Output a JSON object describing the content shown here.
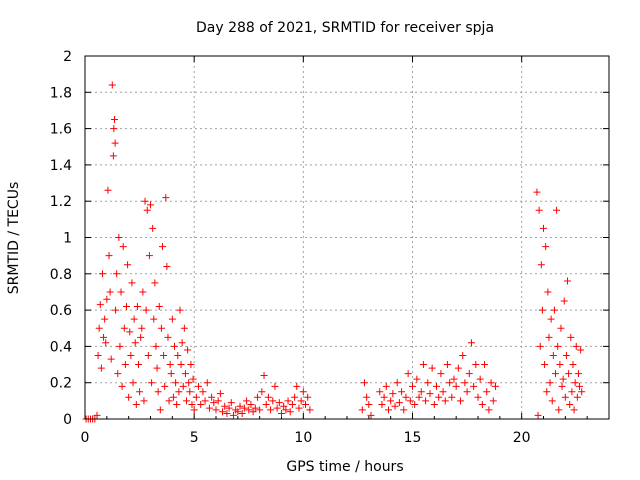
{
  "chart_data": {
    "type": "scatter",
    "title": "Day 288 of 2021, SRMTID for receiver spja",
    "xlabel": "GPS time / hours",
    "ylabel": "SRMTID / TECUs",
    "xlim": [
      0,
      24
    ],
    "ylim": [
      0,
      2
    ],
    "x_ticks": [
      0,
      5,
      10,
      15,
      20
    ],
    "x_tick_labels": [
      "0",
      "5",
      "10",
      "15",
      "20"
    ],
    "y_ticks": [
      0,
      0.2,
      0.4,
      0.6,
      0.8,
      1,
      1.2,
      1.4,
      1.6,
      1.8,
      2
    ],
    "y_tick_labels": [
      "0",
      "0.2",
      "0.4",
      "0.6",
      "0.8",
      "1",
      "1.2",
      "1.4",
      "1.6",
      "1.8",
      "2"
    ],
    "grid": true,
    "marker": "+",
    "color": "#ff0000",
    "series": [
      {
        "name": "SRMTID",
        "points": [
          [
            0.05,
            0.0
          ],
          [
            0.15,
            0.0
          ],
          [
            0.25,
            0.0
          ],
          [
            0.35,
            0.0
          ],
          [
            0.45,
            0.0
          ],
          [
            0.55,
            0.02
          ],
          [
            0.6,
            0.35
          ],
          [
            0.65,
            0.5
          ],
          [
            0.7,
            0.63
          ],
          [
            0.75,
            0.28
          ],
          [
            0.8,
            0.8
          ],
          [
            0.85,
            0.45
          ],
          [
            0.9,
            0.55
          ],
          [
            0.95,
            0.42
          ],
          [
            1.0,
            0.66
          ],
          [
            1.05,
            1.26
          ],
          [
            1.1,
            0.9
          ],
          [
            1.15,
            0.7
          ],
          [
            1.2,
            0.33
          ],
          [
            1.25,
            1.84
          ],
          [
            1.3,
            1.45
          ],
          [
            1.32,
            1.6
          ],
          [
            1.35,
            1.65
          ],
          [
            1.38,
            1.52
          ],
          [
            1.4,
            0.6
          ],
          [
            1.45,
            0.8
          ],
          [
            1.5,
            0.25
          ],
          [
            1.55,
            1.0
          ],
          [
            1.6,
            0.4
          ],
          [
            1.65,
            0.7
          ],
          [
            1.7,
            0.18
          ],
          [
            1.75,
            0.95
          ],
          [
            1.8,
            0.5
          ],
          [
            1.85,
            0.3
          ],
          [
            1.9,
            0.62
          ],
          [
            1.95,
            0.85
          ],
          [
            2.0,
            0.12
          ],
          [
            2.05,
            0.48
          ],
          [
            2.1,
            0.35
          ],
          [
            2.15,
            0.75
          ],
          [
            2.2,
            0.2
          ],
          [
            2.25,
            0.55
          ],
          [
            2.3,
            0.42
          ],
          [
            2.35,
            0.08
          ],
          [
            2.4,
            0.62
          ],
          [
            2.45,
            0.3
          ],
          [
            2.5,
            0.15
          ],
          [
            2.55,
            0.45
          ],
          [
            2.6,
            0.5
          ],
          [
            2.65,
            0.7
          ],
          [
            2.7,
            0.1
          ],
          [
            2.75,
            1.2
          ],
          [
            2.8,
            0.6
          ],
          [
            2.85,
            1.15
          ],
          [
            2.9,
            0.35
          ],
          [
            2.95,
            0.9
          ],
          [
            3.0,
            1.18
          ],
          [
            3.05,
            0.2
          ],
          [
            3.1,
            1.05
          ],
          [
            3.15,
            0.55
          ],
          [
            3.2,
            0.75
          ],
          [
            3.25,
            0.4
          ],
          [
            3.3,
            0.28
          ],
          [
            3.35,
            0.15
          ],
          [
            3.4,
            0.62
          ],
          [
            3.45,
            0.05
          ],
          [
            3.5,
            0.5
          ],
          [
            3.55,
            0.95
          ],
          [
            3.6,
            0.35
          ],
          [
            3.65,
            0.18
          ],
          [
            3.7,
            1.22
          ],
          [
            3.75,
            0.84
          ],
          [
            3.8,
            0.45
          ],
          [
            3.85,
            0.1
          ],
          [
            3.9,
            0.3
          ],
          [
            3.95,
            0.25
          ],
          [
            4.0,
            0.55
          ],
          [
            4.05,
            0.12
          ],
          [
            4.1,
            0.4
          ],
          [
            4.15,
            0.2
          ],
          [
            4.2,
            0.08
          ],
          [
            4.25,
            0.35
          ],
          [
            4.3,
            0.15
          ],
          [
            4.35,
            0.6
          ],
          [
            4.4,
            0.3
          ],
          [
            4.45,
            0.42
          ],
          [
            4.5,
            0.18
          ],
          [
            4.55,
            0.5
          ],
          [
            4.6,
            0.25
          ],
          [
            4.65,
            0.1
          ],
          [
            4.7,
            0.38
          ],
          [
            4.75,
            0.2
          ],
          [
            4.8,
            0.15
          ],
          [
            4.85,
            0.3
          ],
          [
            4.9,
            0.08
          ],
          [
            4.95,
            0.22
          ],
          [
            5.0,
            0.05
          ],
          [
            5.1,
            0.12
          ],
          [
            5.2,
            0.18
          ],
          [
            5.3,
            0.08
          ],
          [
            5.4,
            0.15
          ],
          [
            5.5,
            0.1
          ],
          [
            5.6,
            0.2
          ],
          [
            5.7,
            0.06
          ],
          [
            5.8,
            0.12
          ],
          [
            5.9,
            0.09
          ],
          [
            6.0,
            0.05
          ],
          [
            6.1,
            0.1
          ],
          [
            6.2,
            0.14
          ],
          [
            6.3,
            0.04
          ],
          [
            6.4,
            0.07
          ],
          [
            6.5,
            0.03
          ],
          [
            6.6,
            0.06
          ],
          [
            6.7,
            0.09
          ],
          [
            6.8,
            0.02
          ],
          [
            6.9,
            0.05
          ],
          [
            7.0,
            0.04
          ],
          [
            7.1,
            0.07
          ],
          [
            7.2,
            0.03
          ],
          [
            7.3,
            0.06
          ],
          [
            7.4,
            0.1
          ],
          [
            7.5,
            0.05
          ],
          [
            7.6,
            0.08
          ],
          [
            7.7,
            0.04
          ],
          [
            7.8,
            0.06
          ],
          [
            7.9,
            0.12
          ],
          [
            8.0,
            0.05
          ],
          [
            8.1,
            0.15
          ],
          [
            8.2,
            0.24
          ],
          [
            8.3,
            0.08
          ],
          [
            8.4,
            0.12
          ],
          [
            8.5,
            0.05
          ],
          [
            8.6,
            0.1
          ],
          [
            8.7,
            0.18
          ],
          [
            8.8,
            0.06
          ],
          [
            8.9,
            0.09
          ],
          [
            9.0,
            0.03
          ],
          [
            9.1,
            0.07
          ],
          [
            9.2,
            0.05
          ],
          [
            9.3,
            0.1
          ],
          [
            9.4,
            0.04
          ],
          [
            9.5,
            0.08
          ],
          [
            9.6,
            0.12
          ],
          [
            9.7,
            0.18
          ],
          [
            9.8,
            0.06
          ],
          [
            9.9,
            0.1
          ],
          [
            10.0,
            0.15
          ],
          [
            10.1,
            0.08
          ],
          [
            10.2,
            0.12
          ],
          [
            10.3,
            0.05
          ],
          [
            12.7,
            0.05
          ],
          [
            12.8,
            0.2
          ],
          [
            12.9,
            0.12
          ],
          [
            13.0,
            0.08
          ],
          [
            13.1,
            0.02
          ],
          [
            13.5,
            0.15
          ],
          [
            13.6,
            0.08
          ],
          [
            13.7,
            0.12
          ],
          [
            13.8,
            0.18
          ],
          [
            13.9,
            0.05
          ],
          [
            14.0,
            0.1
          ],
          [
            14.1,
            0.14
          ],
          [
            14.2,
            0.07
          ],
          [
            14.3,
            0.2
          ],
          [
            14.4,
            0.09
          ],
          [
            14.5,
            0.15
          ],
          [
            14.6,
            0.05
          ],
          [
            14.7,
            0.12
          ],
          [
            14.8,
            0.25
          ],
          [
            14.9,
            0.1
          ],
          [
            15.0,
            0.18
          ],
          [
            15.1,
            0.08
          ],
          [
            15.2,
            0.22
          ],
          [
            15.3,
            0.12
          ],
          [
            15.4,
            0.15
          ],
          [
            15.5,
            0.3
          ],
          [
            15.6,
            0.1
          ],
          [
            15.7,
            0.2
          ],
          [
            15.8,
            0.14
          ],
          [
            15.9,
            0.28
          ],
          [
            16.0,
            0.08
          ],
          [
            16.1,
            0.18
          ],
          [
            16.2,
            0.12
          ],
          [
            16.3,
            0.25
          ],
          [
            16.4,
            0.15
          ],
          [
            16.5,
            0.1
          ],
          [
            16.6,
            0.3
          ],
          [
            16.7,
            0.2
          ],
          [
            16.8,
            0.12
          ],
          [
            16.9,
            0.22
          ],
          [
            17.0,
            0.18
          ],
          [
            17.1,
            0.28
          ],
          [
            17.2,
            0.1
          ],
          [
            17.3,
            0.35
          ],
          [
            17.4,
            0.2
          ],
          [
            17.5,
            0.15
          ],
          [
            17.6,
            0.25
          ],
          [
            17.7,
            0.42
          ],
          [
            17.8,
            0.18
          ],
          [
            17.9,
            0.3
          ],
          [
            18.0,
            0.12
          ],
          [
            18.1,
            0.22
          ],
          [
            18.2,
            0.08
          ],
          [
            18.3,
            0.3
          ],
          [
            18.4,
            0.15
          ],
          [
            18.5,
            0.05
          ],
          [
            18.6,
            0.2
          ],
          [
            18.7,
            0.1
          ],
          [
            18.8,
            0.18
          ],
          [
            20.7,
            1.25
          ],
          [
            20.75,
            0.02
          ],
          [
            20.8,
            1.15
          ],
          [
            20.85,
            0.4
          ],
          [
            20.9,
            0.85
          ],
          [
            20.95,
            0.6
          ],
          [
            21.0,
            1.05
          ],
          [
            21.05,
            0.3
          ],
          [
            21.1,
            0.95
          ],
          [
            21.15,
            0.15
          ],
          [
            21.2,
            0.7
          ],
          [
            21.25,
            0.45
          ],
          [
            21.3,
            0.2
          ],
          [
            21.35,
            0.55
          ],
          [
            21.4,
            0.1
          ],
          [
            21.45,
            0.35
          ],
          [
            21.5,
            0.6
          ],
          [
            21.55,
            0.25
          ],
          [
            21.6,
            1.15
          ],
          [
            21.65,
            0.4
          ],
          [
            21.7,
            0.05
          ],
          [
            21.75,
            0.3
          ],
          [
            21.8,
            0.5
          ],
          [
            21.85,
            0.18
          ],
          [
            21.9,
            0.22
          ],
          [
            21.95,
            0.65
          ],
          [
            22.0,
            0.12
          ],
          [
            22.05,
            0.35
          ],
          [
            22.1,
            0.76
          ],
          [
            22.15,
            0.25
          ],
          [
            22.2,
            0.08
          ],
          [
            22.25,
            0.45
          ],
          [
            22.3,
            0.15
          ],
          [
            22.35,
            0.3
          ],
          [
            22.4,
            0.05
          ],
          [
            22.45,
            0.2
          ],
          [
            22.5,
            0.4
          ],
          [
            22.55,
            0.12
          ],
          [
            22.6,
            0.25
          ],
          [
            22.65,
            0.18
          ],
          [
            22.7,
            0.38
          ],
          [
            22.75,
            0.15
          ]
        ]
      }
    ]
  }
}
